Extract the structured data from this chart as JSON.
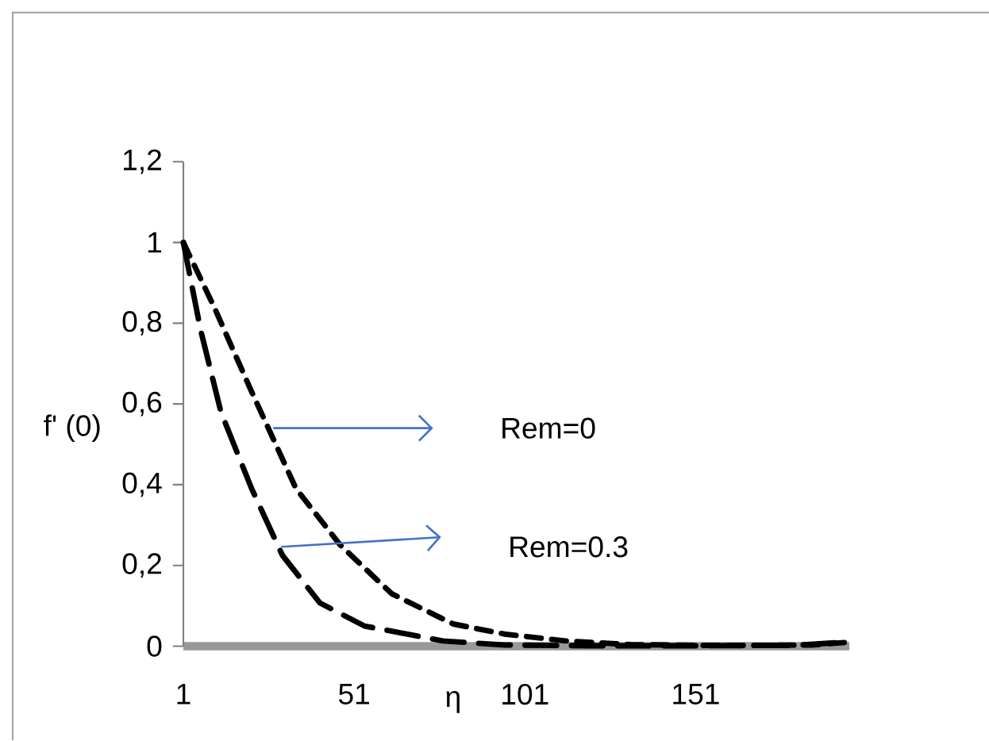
{
  "chart_data": {
    "type": "line",
    "xlabel": "η",
    "ylabel": "f' (0)",
    "xlim": [
      1,
      196
    ],
    "xticks": [
      1,
      51,
      101,
      151
    ],
    "ylim": [
      0,
      1.2
    ],
    "yticks": [
      {
        "value": 0,
        "label": "0"
      },
      {
        "value": 0.2,
        "label": "0,2"
      },
      {
        "value": 0.4,
        "label": "0,4"
      },
      {
        "value": 0.6,
        "label": "0,6"
      },
      {
        "value": 0.8,
        "label": "0,8"
      },
      {
        "value": 1,
        "label": "1"
      },
      {
        "value": 1.2,
        "label": "1,2"
      }
    ],
    "marker": "none",
    "line_style": "dashed",
    "series": [
      {
        "color": "#000000",
        "x": [
          1,
          10,
          21,
          34,
          47,
          62,
          80,
          95,
          113,
          132,
          150,
          170,
          185,
          196
        ],
        "values": [
          1.0,
          0.84,
          0.63,
          0.39,
          0.25,
          0.13,
          0.055,
          0.03,
          0.013,
          0.004,
          0.002,
          0.002,
          0.003,
          0.01
        ]
      },
      {
        "color": "#000000",
        "x": [
          1,
          6,
          12,
          21,
          30,
          41,
          54,
          77,
          95,
          120,
          150,
          180,
          195
        ],
        "values": [
          1.0,
          0.785,
          0.58,
          0.39,
          0.225,
          0.107,
          0.05,
          0.013,
          0.003,
          0.001,
          0.001,
          0.002,
          0.01
        ]
      }
    ],
    "annotations": [
      "Rem=0",
      "Rem=0.3"
    ]
  }
}
